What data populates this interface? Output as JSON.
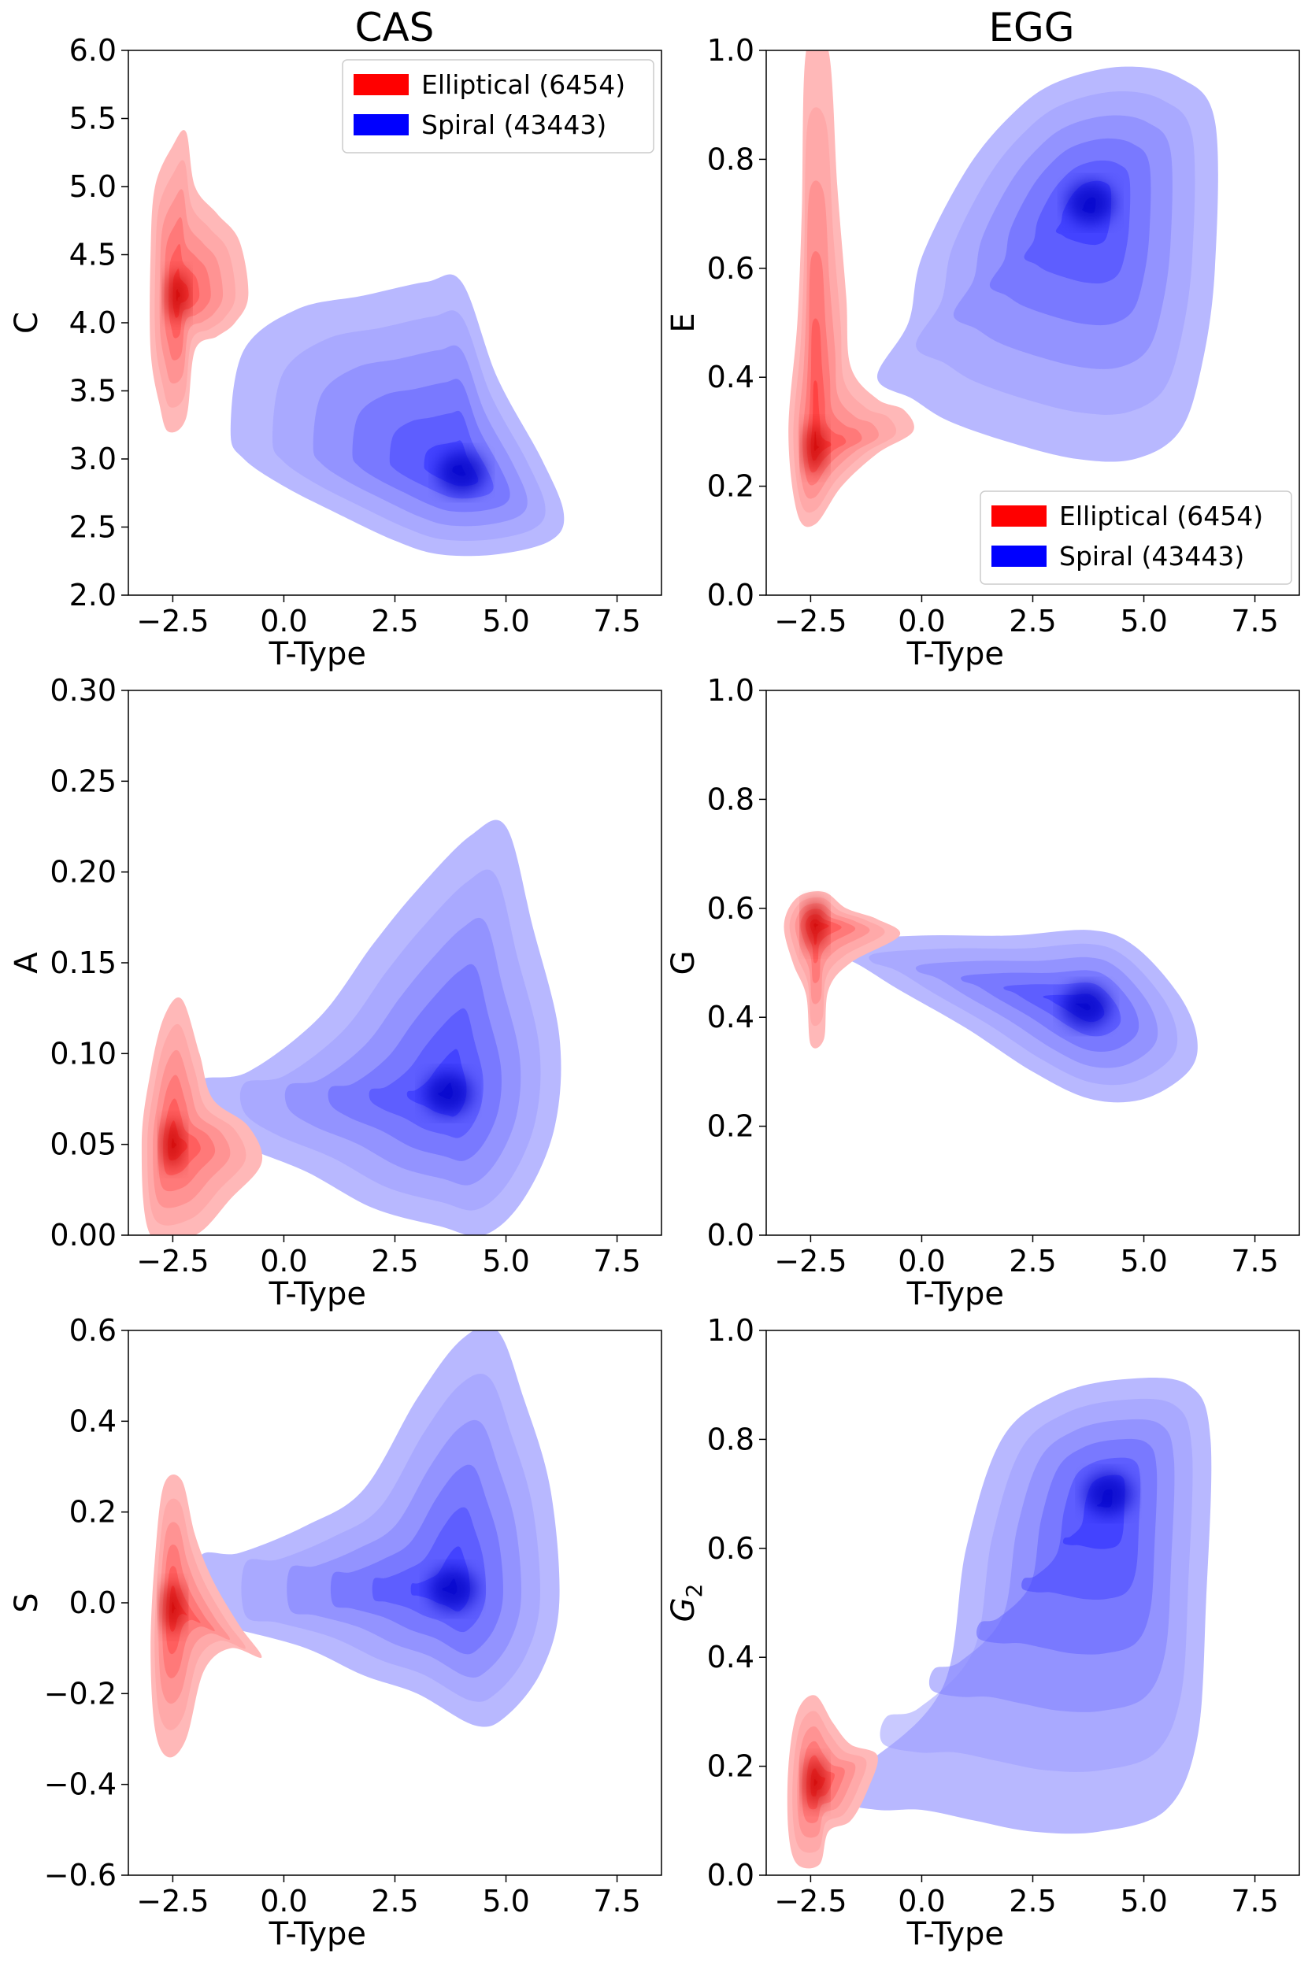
{
  "figure": {
    "column_titles": [
      "CAS",
      "EGG"
    ],
    "colors": {
      "elliptical": "#ff0000",
      "spiral": "#0000ff"
    },
    "legend": [
      {
        "label": "Elliptical (6454)",
        "color": "#ff0000"
      },
      {
        "label": "Spiral (43443)",
        "color": "#0000ff"
      }
    ]
  },
  "chart_data": [
    {
      "type": "kde-contour",
      "column": "CAS",
      "xlabel": "T-Type",
      "ylabel": "C",
      "xlim": [
        -3.5,
        8.5
      ],
      "ylim": [
        2.0,
        6.0
      ],
      "xticks": [
        -2.5,
        0.0,
        2.5,
        5.0,
        7.5
      ],
      "xtick_labels": [
        "−2.5",
        "0.0",
        "2.5",
        "5.0",
        "7.5"
      ],
      "yticks": [
        2.0,
        2.5,
        3.0,
        3.5,
        4.0,
        4.5,
        5.0,
        5.5,
        6.0
      ],
      "ytick_labels": [
        "2.0",
        "2.5",
        "3.0",
        "3.5",
        "4.0",
        "4.5",
        "5.0",
        "5.5",
        "6.0"
      ],
      "legend": true,
      "legend_location": "upper right",
      "series": [
        {
          "name": "Elliptical",
          "color": "#ff0000",
          "peak": [
            -2.4,
            4.2
          ],
          "outline": [
            [
              -2.6,
              3.2
            ],
            [
              -2.2,
              3.3
            ],
            [
              -2.0,
              3.8
            ],
            [
              -1.5,
              3.9
            ],
            [
              -1.1,
              4.0
            ],
            [
              -0.8,
              4.2
            ],
            [
              -1.0,
              4.6
            ],
            [
              -1.5,
              4.8
            ],
            [
              -2.0,
              5.0
            ],
            [
              -2.2,
              5.4
            ],
            [
              -2.5,
              5.3
            ],
            [
              -2.9,
              5.0
            ],
            [
              -3.0,
              4.5
            ],
            [
              -3.0,
              3.8
            ],
            [
              -2.8,
              3.4
            ]
          ]
        },
        {
          "name": "Spiral",
          "color": "#0000ff",
          "peak": [
            4.0,
            2.9
          ],
          "outline": [
            [
              -1.2,
              3.2
            ],
            [
              -0.9,
              3.8
            ],
            [
              0.3,
              4.1
            ],
            [
              1.8,
              4.2
            ],
            [
              3.2,
              4.3
            ],
            [
              4.0,
              4.3
            ],
            [
              4.8,
              3.6
            ],
            [
              5.8,
              3.0
            ],
            [
              6.3,
              2.6
            ],
            [
              6.0,
              2.4
            ],
            [
              4.8,
              2.3
            ],
            [
              3.5,
              2.3
            ],
            [
              2.5,
              2.4
            ],
            [
              1.2,
              2.6
            ],
            [
              0.0,
              2.8
            ],
            [
              -0.9,
              3.0
            ]
          ]
        }
      ]
    },
    {
      "type": "kde-contour",
      "column": "EGG",
      "xlabel": "T-Type",
      "ylabel": "E",
      "xlim": [
        -3.5,
        8.5
      ],
      "ylim": [
        0.0,
        1.0
      ],
      "xticks": [
        -2.5,
        0.0,
        2.5,
        5.0,
        7.5
      ],
      "xtick_labels": [
        "−2.5",
        "0.0",
        "2.5",
        "5.0",
        "7.5"
      ],
      "yticks": [
        0.0,
        0.2,
        0.4,
        0.6,
        0.8,
        1.0
      ],
      "ytick_labels": [
        "0.0",
        "0.2",
        "0.4",
        "0.6",
        "0.8",
        "1.0"
      ],
      "legend": true,
      "legend_location": "lower right",
      "series": [
        {
          "name": "Elliptical",
          "color": "#ff0000",
          "peak": [
            -2.4,
            0.27
          ],
          "outline": [
            [
              -2.8,
              0.15
            ],
            [
              -2.4,
              0.13
            ],
            [
              -1.8,
              0.2
            ],
            [
              -1.0,
              0.26
            ],
            [
              -0.2,
              0.3
            ],
            [
              -0.4,
              0.34
            ],
            [
              -1.0,
              0.36
            ],
            [
              -1.6,
              0.42
            ],
            [
              -1.7,
              0.55
            ],
            [
              -1.9,
              0.75
            ],
            [
              -2.1,
              1.0
            ],
            [
              -2.6,
              1.0
            ],
            [
              -2.7,
              0.7
            ],
            [
              -2.8,
              0.5
            ],
            [
              -3.0,
              0.3
            ]
          ]
        },
        {
          "name": "Spiral",
          "color": "#0000ff",
          "peak": [
            3.8,
            0.72
          ],
          "outline": [
            [
              -1.0,
              0.4
            ],
            [
              -0.3,
              0.5
            ],
            [
              0.0,
              0.62
            ],
            [
              1.0,
              0.78
            ],
            [
              2.0,
              0.88
            ],
            [
              3.0,
              0.94
            ],
            [
              4.5,
              0.97
            ],
            [
              5.8,
              0.95
            ],
            [
              6.6,
              0.87
            ],
            [
              6.6,
              0.6
            ],
            [
              6.3,
              0.42
            ],
            [
              5.8,
              0.3
            ],
            [
              4.8,
              0.25
            ],
            [
              3.5,
              0.25
            ],
            [
              2.0,
              0.28
            ],
            [
              0.6,
              0.32
            ],
            [
              -0.2,
              0.36
            ]
          ]
        }
      ]
    },
    {
      "type": "kde-contour",
      "column": "CAS",
      "xlabel": "T-Type",
      "ylabel": "A",
      "xlim": [
        -3.5,
        8.5
      ],
      "ylim": [
        0.0,
        0.3
      ],
      "xticks": [
        -2.5,
        0.0,
        2.5,
        5.0,
        7.5
      ],
      "xtick_labels": [
        "−2.5",
        "0.0",
        "2.5",
        "5.0",
        "7.5"
      ],
      "yticks": [
        0.0,
        0.05,
        0.1,
        0.15,
        0.2,
        0.25,
        0.3
      ],
      "ytick_labels": [
        "0.00",
        "0.05",
        "0.10",
        "0.15",
        "0.20",
        "0.25",
        "0.30"
      ],
      "legend": false,
      "series": [
        {
          "name": "Elliptical",
          "color": "#ff0000",
          "peak": [
            -2.5,
            0.05
          ],
          "outline": [
            [
              -3.0,
              0.0
            ],
            [
              -2.0,
              0.0
            ],
            [
              -1.2,
              0.02
            ],
            [
              -0.5,
              0.04
            ],
            [
              -0.8,
              0.06
            ],
            [
              -1.6,
              0.075
            ],
            [
              -1.9,
              0.1
            ],
            [
              -2.3,
              0.13
            ],
            [
              -2.7,
              0.12
            ],
            [
              -3.0,
              0.09
            ],
            [
              -3.2,
              0.05
            ]
          ]
        },
        {
          "name": "Spiral",
          "color": "#0000ff",
          "peak": [
            3.7,
            0.078
          ],
          "outline": [
            [
              -1.9,
              0.065
            ],
            [
              -1.9,
              0.085
            ],
            [
              -0.8,
              0.09
            ],
            [
              0.8,
              0.12
            ],
            [
              2.0,
              0.16
            ],
            [
              3.0,
              0.19
            ],
            [
              4.2,
              0.22
            ],
            [
              5.0,
              0.225
            ],
            [
              5.6,
              0.17
            ],
            [
              6.2,
              0.11
            ],
            [
              6.1,
              0.06
            ],
            [
              5.4,
              0.02
            ],
            [
              4.5,
              0.0
            ],
            [
              3.5,
              0.005
            ],
            [
              2.0,
              0.015
            ],
            [
              0.5,
              0.035
            ],
            [
              -1.0,
              0.05
            ]
          ]
        }
      ]
    },
    {
      "type": "kde-contour",
      "column": "EGG",
      "xlabel": "T-Type",
      "ylabel": "G",
      "xlim": [
        -3.5,
        8.5
      ],
      "ylim": [
        0.0,
        1.0
      ],
      "xticks": [
        -2.5,
        0.0,
        2.5,
        5.0,
        7.5
      ],
      "xtick_labels": [
        "−2.5",
        "0.0",
        "2.5",
        "5.0",
        "7.5"
      ],
      "yticks": [
        0.0,
        0.2,
        0.4,
        0.6,
        0.8,
        1.0
      ],
      "ytick_labels": [
        "0.0",
        "0.2",
        "0.4",
        "0.6",
        "0.8",
        "1.0"
      ],
      "legend": false,
      "series": [
        {
          "name": "Elliptical",
          "color": "#ff0000",
          "peak": [
            -2.4,
            0.57
          ],
          "outline": [
            [
              -2.5,
              0.35
            ],
            [
              -2.2,
              0.36
            ],
            [
              -2.1,
              0.45
            ],
            [
              -1.6,
              0.5
            ],
            [
              -0.5,
              0.55
            ],
            [
              -1.0,
              0.58
            ],
            [
              -1.7,
              0.6
            ],
            [
              -2.2,
              0.63
            ],
            [
              -2.8,
              0.62
            ],
            [
              -3.1,
              0.57
            ],
            [
              -2.9,
              0.5
            ],
            [
              -2.6,
              0.44
            ]
          ]
        },
        {
          "name": "Spiral",
          "color": "#0000ff",
          "peak": [
            3.7,
            0.42
          ],
          "outline": [
            [
              -2.2,
              0.52
            ],
            [
              -2.0,
              0.54
            ],
            [
              0.0,
              0.55
            ],
            [
              2.0,
              0.55
            ],
            [
              3.8,
              0.56
            ],
            [
              4.8,
              0.53
            ],
            [
              5.8,
              0.44
            ],
            [
              6.2,
              0.36
            ],
            [
              6.0,
              0.3
            ],
            [
              5.0,
              0.25
            ],
            [
              3.8,
              0.25
            ],
            [
              2.5,
              0.3
            ],
            [
              1.0,
              0.38
            ],
            [
              -0.5,
              0.45
            ],
            [
              -1.5,
              0.5
            ]
          ]
        }
      ]
    },
    {
      "type": "kde-contour",
      "column": "CAS",
      "xlabel": "T-Type",
      "ylabel": "S",
      "xlim": [
        -3.5,
        8.5
      ],
      "ylim": [
        -0.6,
        0.6
      ],
      "xticks": [
        -2.5,
        0.0,
        2.5,
        5.0,
        7.5
      ],
      "xtick_labels": [
        "−2.5",
        "0.0",
        "2.5",
        "5.0",
        "7.5"
      ],
      "yticks": [
        -0.6,
        -0.4,
        -0.2,
        0.0,
        0.2,
        0.4,
        0.6
      ],
      "ytick_labels": [
        "−0.6",
        "−0.4",
        "−0.2",
        "0.0",
        "0.2",
        "0.4",
        "0.6"
      ],
      "legend": false,
      "series": [
        {
          "name": "Elliptical",
          "color": "#ff0000",
          "peak": [
            -2.5,
            -0.01
          ],
          "outline": [
            [
              -2.6,
              -0.34
            ],
            [
              -2.2,
              -0.3
            ],
            [
              -1.8,
              -0.15
            ],
            [
              -1.2,
              -0.1
            ],
            [
              -0.5,
              -0.12
            ],
            [
              -1.0,
              -0.05
            ],
            [
              -1.6,
              0.05
            ],
            [
              -2.0,
              0.15
            ],
            [
              -2.3,
              0.27
            ],
            [
              -2.7,
              0.26
            ],
            [
              -2.9,
              0.1
            ],
            [
              -3.0,
              -0.1
            ],
            [
              -2.9,
              -0.28
            ]
          ]
        },
        {
          "name": "Spiral",
          "color": "#0000ff",
          "peak": [
            3.8,
            0.03
          ],
          "outline": [
            [
              -1.9,
              -0.04
            ],
            [
              -1.9,
              0.1
            ],
            [
              -1.0,
              0.11
            ],
            [
              0.5,
              0.17
            ],
            [
              1.8,
              0.25
            ],
            [
              3.0,
              0.45
            ],
            [
              4.0,
              0.58
            ],
            [
              4.8,
              0.6
            ],
            [
              5.4,
              0.45
            ],
            [
              6.0,
              0.25
            ],
            [
              6.2,
              0.0
            ],
            [
              5.8,
              -0.15
            ],
            [
              5.0,
              -0.25
            ],
            [
              4.3,
              -0.27
            ],
            [
              3.0,
              -0.2
            ],
            [
              1.8,
              -0.16
            ],
            [
              0.5,
              -0.1
            ],
            [
              -1.0,
              -0.06
            ]
          ]
        }
      ]
    },
    {
      "type": "kde-contour",
      "column": "EGG",
      "xlabel": "T-Type",
      "ylabel": "G",
      "ylabel_subscript": "2",
      "xlim": [
        -3.5,
        8.5
      ],
      "ylim": [
        0.0,
        1.0
      ],
      "xticks": [
        -2.5,
        0.0,
        2.5,
        5.0,
        7.5
      ],
      "xtick_labels": [
        "−2.5",
        "0.0",
        "2.5",
        "5.0",
        "7.5"
      ],
      "yticks": [
        0.0,
        0.2,
        0.4,
        0.6,
        0.8,
        1.0
      ],
      "ytick_labels": [
        "0.0",
        "0.2",
        "0.4",
        "0.6",
        "0.8",
        "1.0"
      ],
      "legend": false,
      "series": [
        {
          "name": "Elliptical",
          "color": "#ff0000",
          "peak": [
            -2.4,
            0.17
          ],
          "outline": [
            [
              -2.8,
              0.02
            ],
            [
              -2.3,
              0.02
            ],
            [
              -2.1,
              0.08
            ],
            [
              -1.6,
              0.1
            ],
            [
              -1.2,
              0.16
            ],
            [
              -1.0,
              0.22
            ],
            [
              -1.6,
              0.24
            ],
            [
              -2.0,
              0.28
            ],
            [
              -2.4,
              0.33
            ],
            [
              -2.8,
              0.3
            ],
            [
              -3.0,
              0.2
            ],
            [
              -3.0,
              0.08
            ]
          ]
        },
        {
          "name": "Spiral",
          "color": "#0000ff",
          "peak": [
            4.2,
            0.7
          ],
          "outline": [
            [
              -2.0,
              0.14
            ],
            [
              -1.9,
              0.2
            ],
            [
              -1.0,
              0.22
            ],
            [
              0.5,
              0.35
            ],
            [
              1.0,
              0.6
            ],
            [
              1.8,
              0.8
            ],
            [
              3.0,
              0.88
            ],
            [
              4.5,
              0.91
            ],
            [
              6.0,
              0.9
            ],
            [
              6.5,
              0.8
            ],
            [
              6.4,
              0.5
            ],
            [
              6.2,
              0.25
            ],
            [
              5.5,
              0.12
            ],
            [
              4.0,
              0.08
            ],
            [
              2.5,
              0.08
            ],
            [
              1.2,
              0.1
            ],
            [
              0.0,
              0.12
            ],
            [
              -1.0,
              0.12
            ]
          ]
        }
      ]
    }
  ]
}
